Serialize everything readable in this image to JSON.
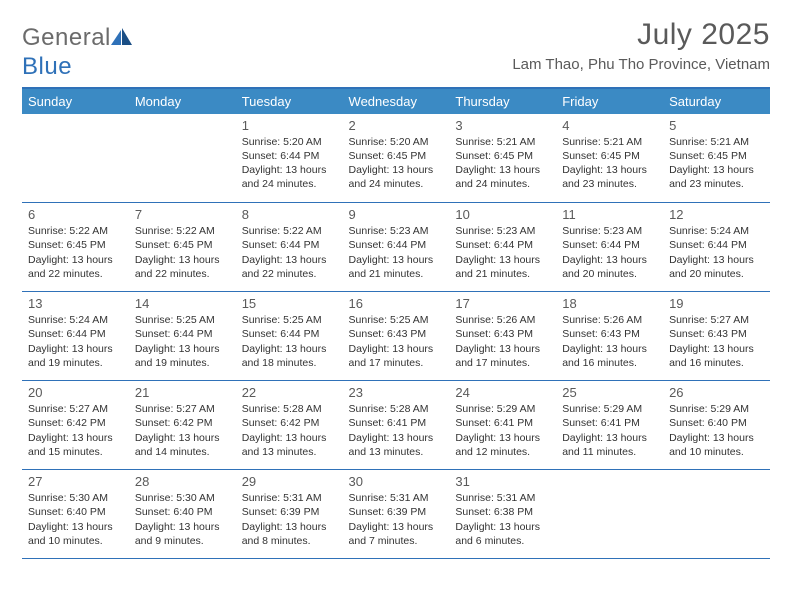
{
  "logo": {
    "general": "General",
    "blue": "Blue"
  },
  "title": "July 2025",
  "subtitle": "Lam Thao, Phu Tho Province, Vietnam",
  "colors": {
    "header_bg": "#3b8ac4",
    "border": "#2f71b8",
    "text": "#333333",
    "muted": "#5a5a5a",
    "white": "#ffffff"
  },
  "weekdays": [
    "Sunday",
    "Monday",
    "Tuesday",
    "Wednesday",
    "Thursday",
    "Friday",
    "Saturday"
  ],
  "cells": [
    [
      null,
      null,
      {
        "n": "1",
        "sr": "Sunrise: 5:20 AM",
        "ss": "Sunset: 6:44 PM",
        "d1": "Daylight: 13 hours",
        "d2": "and 24 minutes."
      },
      {
        "n": "2",
        "sr": "Sunrise: 5:20 AM",
        "ss": "Sunset: 6:45 PM",
        "d1": "Daylight: 13 hours",
        "d2": "and 24 minutes."
      },
      {
        "n": "3",
        "sr": "Sunrise: 5:21 AM",
        "ss": "Sunset: 6:45 PM",
        "d1": "Daylight: 13 hours",
        "d2": "and 24 minutes."
      },
      {
        "n": "4",
        "sr": "Sunrise: 5:21 AM",
        "ss": "Sunset: 6:45 PM",
        "d1": "Daylight: 13 hours",
        "d2": "and 23 minutes."
      },
      {
        "n": "5",
        "sr": "Sunrise: 5:21 AM",
        "ss": "Sunset: 6:45 PM",
        "d1": "Daylight: 13 hours",
        "d2": "and 23 minutes."
      }
    ],
    [
      {
        "n": "6",
        "sr": "Sunrise: 5:22 AM",
        "ss": "Sunset: 6:45 PM",
        "d1": "Daylight: 13 hours",
        "d2": "and 22 minutes."
      },
      {
        "n": "7",
        "sr": "Sunrise: 5:22 AM",
        "ss": "Sunset: 6:45 PM",
        "d1": "Daylight: 13 hours",
        "d2": "and 22 minutes."
      },
      {
        "n": "8",
        "sr": "Sunrise: 5:22 AM",
        "ss": "Sunset: 6:44 PM",
        "d1": "Daylight: 13 hours",
        "d2": "and 22 minutes."
      },
      {
        "n": "9",
        "sr": "Sunrise: 5:23 AM",
        "ss": "Sunset: 6:44 PM",
        "d1": "Daylight: 13 hours",
        "d2": "and 21 minutes."
      },
      {
        "n": "10",
        "sr": "Sunrise: 5:23 AM",
        "ss": "Sunset: 6:44 PM",
        "d1": "Daylight: 13 hours",
        "d2": "and 21 minutes."
      },
      {
        "n": "11",
        "sr": "Sunrise: 5:23 AM",
        "ss": "Sunset: 6:44 PM",
        "d1": "Daylight: 13 hours",
        "d2": "and 20 minutes."
      },
      {
        "n": "12",
        "sr": "Sunrise: 5:24 AM",
        "ss": "Sunset: 6:44 PM",
        "d1": "Daylight: 13 hours",
        "d2": "and 20 minutes."
      }
    ],
    [
      {
        "n": "13",
        "sr": "Sunrise: 5:24 AM",
        "ss": "Sunset: 6:44 PM",
        "d1": "Daylight: 13 hours",
        "d2": "and 19 minutes."
      },
      {
        "n": "14",
        "sr": "Sunrise: 5:25 AM",
        "ss": "Sunset: 6:44 PM",
        "d1": "Daylight: 13 hours",
        "d2": "and 19 minutes."
      },
      {
        "n": "15",
        "sr": "Sunrise: 5:25 AM",
        "ss": "Sunset: 6:44 PM",
        "d1": "Daylight: 13 hours",
        "d2": "and 18 minutes."
      },
      {
        "n": "16",
        "sr": "Sunrise: 5:25 AM",
        "ss": "Sunset: 6:43 PM",
        "d1": "Daylight: 13 hours",
        "d2": "and 17 minutes."
      },
      {
        "n": "17",
        "sr": "Sunrise: 5:26 AM",
        "ss": "Sunset: 6:43 PM",
        "d1": "Daylight: 13 hours",
        "d2": "and 17 minutes."
      },
      {
        "n": "18",
        "sr": "Sunrise: 5:26 AM",
        "ss": "Sunset: 6:43 PM",
        "d1": "Daylight: 13 hours",
        "d2": "and 16 minutes."
      },
      {
        "n": "19",
        "sr": "Sunrise: 5:27 AM",
        "ss": "Sunset: 6:43 PM",
        "d1": "Daylight: 13 hours",
        "d2": "and 16 minutes."
      }
    ],
    [
      {
        "n": "20",
        "sr": "Sunrise: 5:27 AM",
        "ss": "Sunset: 6:42 PM",
        "d1": "Daylight: 13 hours",
        "d2": "and 15 minutes."
      },
      {
        "n": "21",
        "sr": "Sunrise: 5:27 AM",
        "ss": "Sunset: 6:42 PM",
        "d1": "Daylight: 13 hours",
        "d2": "and 14 minutes."
      },
      {
        "n": "22",
        "sr": "Sunrise: 5:28 AM",
        "ss": "Sunset: 6:42 PM",
        "d1": "Daylight: 13 hours",
        "d2": "and 13 minutes."
      },
      {
        "n": "23",
        "sr": "Sunrise: 5:28 AM",
        "ss": "Sunset: 6:41 PM",
        "d1": "Daylight: 13 hours",
        "d2": "and 13 minutes."
      },
      {
        "n": "24",
        "sr": "Sunrise: 5:29 AM",
        "ss": "Sunset: 6:41 PM",
        "d1": "Daylight: 13 hours",
        "d2": "and 12 minutes."
      },
      {
        "n": "25",
        "sr": "Sunrise: 5:29 AM",
        "ss": "Sunset: 6:41 PM",
        "d1": "Daylight: 13 hours",
        "d2": "and 11 minutes."
      },
      {
        "n": "26",
        "sr": "Sunrise: 5:29 AM",
        "ss": "Sunset: 6:40 PM",
        "d1": "Daylight: 13 hours",
        "d2": "and 10 minutes."
      }
    ],
    [
      {
        "n": "27",
        "sr": "Sunrise: 5:30 AM",
        "ss": "Sunset: 6:40 PM",
        "d1": "Daylight: 13 hours",
        "d2": "and 10 minutes."
      },
      {
        "n": "28",
        "sr": "Sunrise: 5:30 AM",
        "ss": "Sunset: 6:40 PM",
        "d1": "Daylight: 13 hours",
        "d2": "and 9 minutes."
      },
      {
        "n": "29",
        "sr": "Sunrise: 5:31 AM",
        "ss": "Sunset: 6:39 PM",
        "d1": "Daylight: 13 hours",
        "d2": "and 8 minutes."
      },
      {
        "n": "30",
        "sr": "Sunrise: 5:31 AM",
        "ss": "Sunset: 6:39 PM",
        "d1": "Daylight: 13 hours",
        "d2": "and 7 minutes."
      },
      {
        "n": "31",
        "sr": "Sunrise: 5:31 AM",
        "ss": "Sunset: 6:38 PM",
        "d1": "Daylight: 13 hours",
        "d2": "and 6 minutes."
      },
      null,
      null
    ]
  ]
}
